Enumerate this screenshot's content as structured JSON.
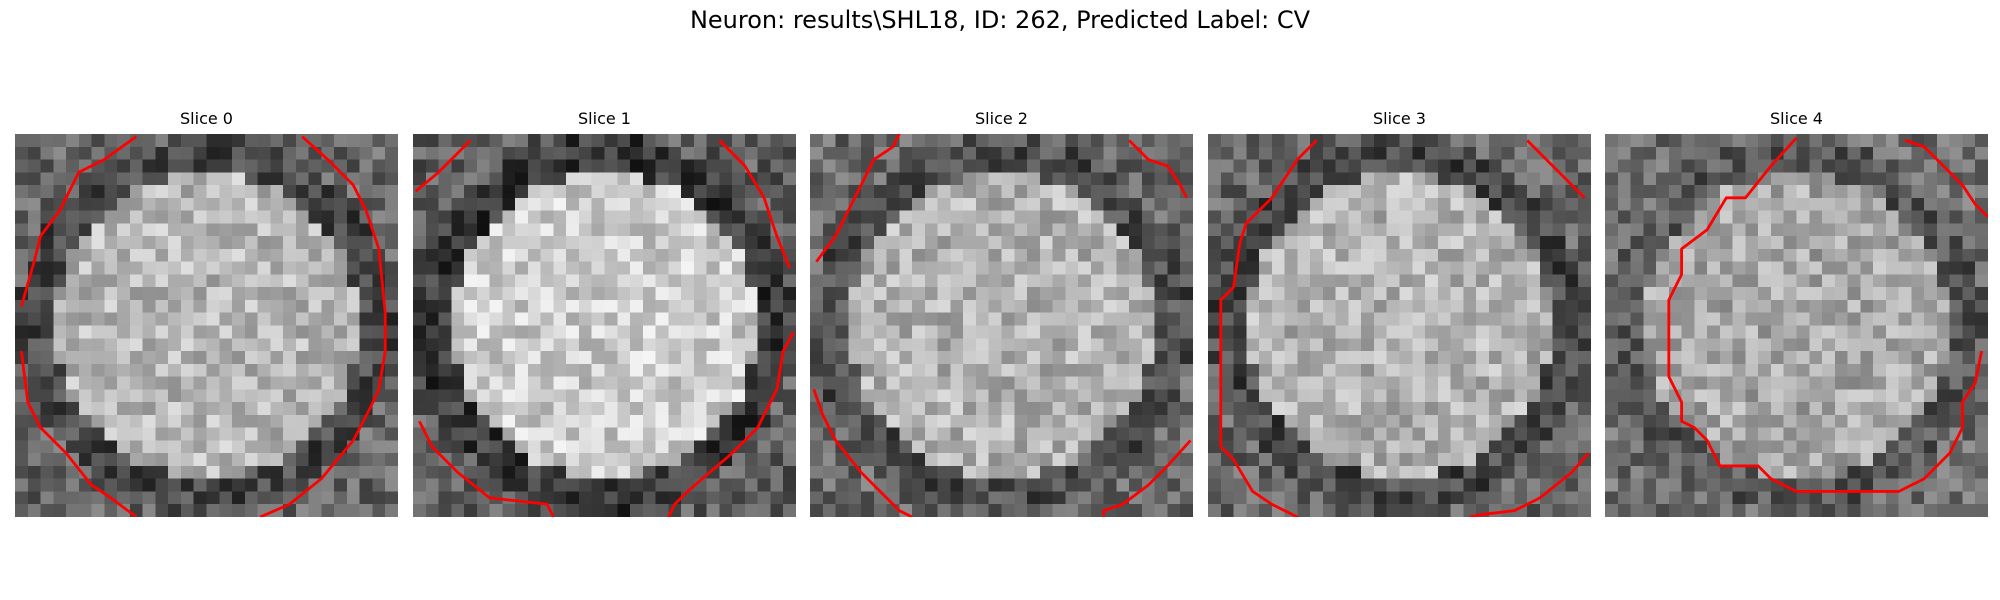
{
  "figure": {
    "title": "Neuron: results\\SHL18, ID: 262, Predicted Label: CV"
  },
  "panels": [
    {
      "title": "Slice 0",
      "seed": 11,
      "center_brightness": 0.72,
      "edge_brightness": 0.28
    },
    {
      "title": "Slice 1",
      "seed": 23,
      "center_brightness": 0.8,
      "edge_brightness": 0.22
    },
    {
      "title": "Slice 2",
      "seed": 37,
      "center_brightness": 0.7,
      "edge_brightness": 0.3
    },
    {
      "title": "Slice 3",
      "seed": 49,
      "center_brightness": 0.7,
      "edge_brightness": 0.28
    },
    {
      "title": "Slice 4",
      "seed": 61,
      "center_brightness": 0.66,
      "edge_brightness": 0.34
    }
  ],
  "colors": {
    "contour": "#ff0000"
  }
}
